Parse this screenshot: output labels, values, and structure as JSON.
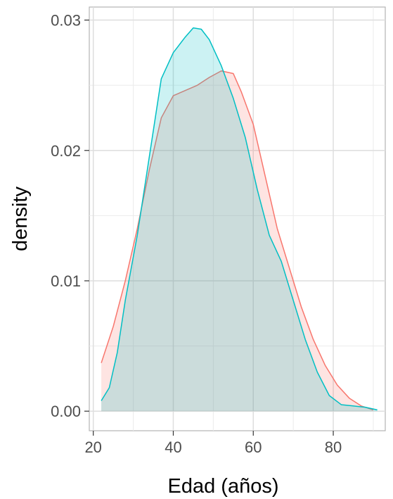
{
  "chart_data": {
    "type": "area",
    "xlabel": "Edad (años)",
    "ylabel": "density",
    "xlim": [
      19,
      93
    ],
    "ylim": [
      -0.0015,
      0.031
    ],
    "x_ticks": [
      20,
      40,
      60,
      80
    ],
    "x_tick_labels": [
      "20",
      "40",
      "60",
      "80"
    ],
    "y_ticks": [
      0.0,
      0.01,
      0.02,
      0.03
    ],
    "y_tick_labels": [
      "0.00",
      "0.01",
      "0.02",
      "0.03"
    ],
    "grid": true,
    "legend": "none",
    "series": [
      {
        "color": "#F8766D",
        "fill": "#F8766D",
        "points": [
          [
            22,
            0.0037
          ],
          [
            25,
            0.0065
          ],
          [
            28,
            0.01
          ],
          [
            31,
            0.014
          ],
          [
            34,
            0.0185
          ],
          [
            37,
            0.0225
          ],
          [
            40,
            0.0242
          ],
          [
            43,
            0.0246
          ],
          [
            46,
            0.025
          ],
          [
            49,
            0.0256
          ],
          [
            52,
            0.0261
          ],
          [
            55,
            0.0259
          ],
          [
            57,
            0.0245
          ],
          [
            60,
            0.022
          ],
          [
            63,
            0.018
          ],
          [
            66,
            0.014
          ],
          [
            69,
            0.011
          ],
          [
            72,
            0.008
          ],
          [
            75,
            0.0055
          ],
          [
            78,
            0.0035
          ],
          [
            81,
            0.002
          ],
          [
            84,
            0.001
          ],
          [
            87,
            0.0004
          ],
          [
            90,
            0.0001
          ]
        ]
      },
      {
        "color": "#00BFC4",
        "fill": "#00BFC4",
        "points": [
          [
            22,
            0.0008
          ],
          [
            24,
            0.0018
          ],
          [
            26,
            0.0045
          ],
          [
            28,
            0.0085
          ],
          [
            31,
            0.0135
          ],
          [
            34,
            0.0195
          ],
          [
            37,
            0.0255
          ],
          [
            40,
            0.0275
          ],
          [
            43,
            0.0287
          ],
          [
            45,
            0.0294
          ],
          [
            47,
            0.0293
          ],
          [
            49,
            0.0285
          ],
          [
            52,
            0.0265
          ],
          [
            55,
            0.024
          ],
          [
            58,
            0.021
          ],
          [
            61,
            0.017
          ],
          [
            64,
            0.0135
          ],
          [
            67,
            0.0115
          ],
          [
            70,
            0.0085
          ],
          [
            73,
            0.0055
          ],
          [
            76,
            0.003
          ],
          [
            79,
            0.0012
          ],
          [
            82,
            0.0005
          ],
          [
            85,
            0.0004
          ],
          [
            88,
            0.0003
          ],
          [
            91,
            0.0001
          ]
        ]
      }
    ]
  }
}
